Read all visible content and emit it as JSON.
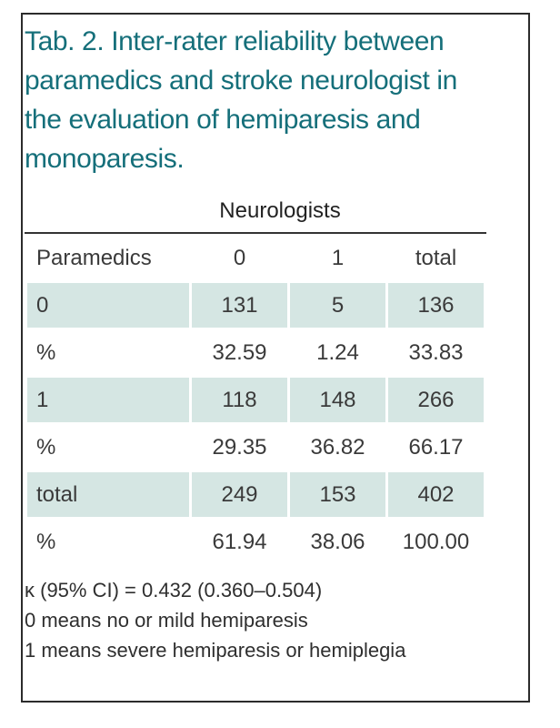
{
  "caption": "Tab. 2. Inter-rater reliability between paramedics and stroke neurologist in the evaluation of hemiparesis and monoparesis.",
  "table": {
    "group_header": "Neurologists",
    "header": [
      "Paramedics",
      "0",
      "1",
      "total"
    ],
    "rows": [
      {
        "label": "0",
        "values": [
          "131",
          "5",
          "136"
        ],
        "shaded": true
      },
      {
        "label": "%",
        "values": [
          "32.59",
          "1.24",
          "33.83"
        ],
        "shaded": false
      },
      {
        "label": "1",
        "values": [
          "118",
          "148",
          "266"
        ],
        "shaded": true
      },
      {
        "label": "%",
        "values": [
          "29.35",
          "36.82",
          "66.17"
        ],
        "shaded": false
      },
      {
        "label": "total",
        "values": [
          "249",
          "153",
          "402"
        ],
        "shaded": true
      },
      {
        "label": "%",
        "values": [
          "61.94",
          "38.06",
          "100.00"
        ],
        "shaded": false
      }
    ]
  },
  "notes": [
    "κ (95% CI) = 0.432 (0.360–0.504)",
    "0 means no or mild hemiparesis",
    "1 means severe hemiparesis or hemiplegia"
  ],
  "colors": {
    "caption": "#156f7a",
    "shade": "#d5e6e3",
    "border": "#2b2b2b"
  }
}
